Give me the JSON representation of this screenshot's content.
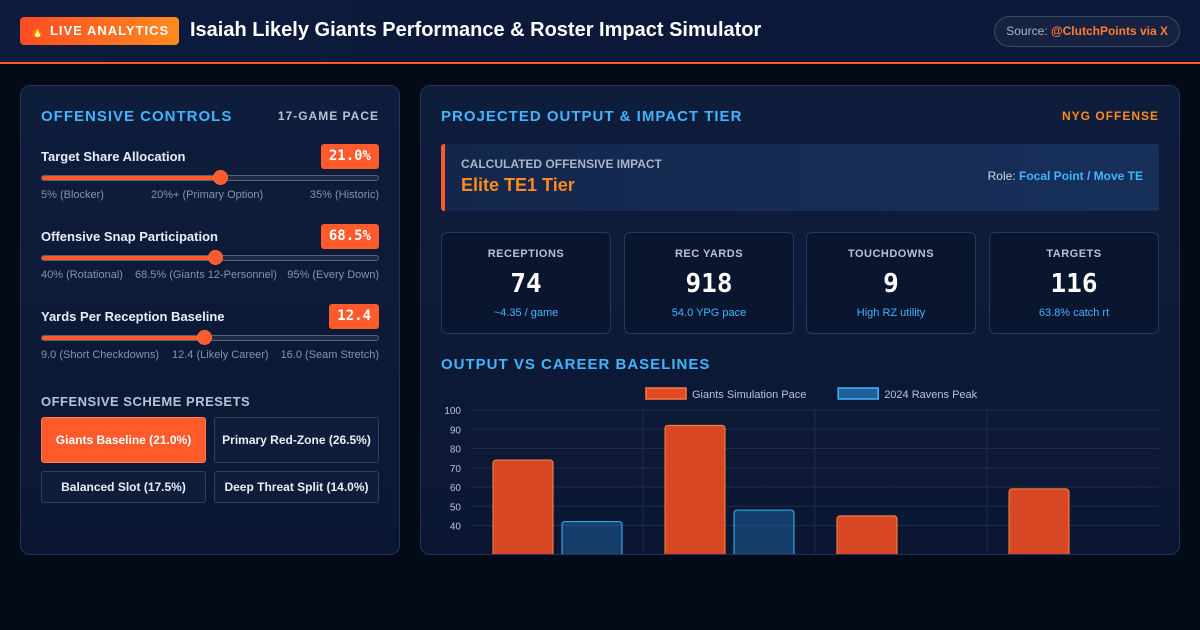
{
  "header": {
    "badge_icon": "fire-icon",
    "badge": "LIVE ANALYTICS",
    "title": "Isaiah Likely Giants Performance & Roster Impact Simulator",
    "source_prefix": "Source:",
    "source_handle": "@ClutchPoints via X"
  },
  "controls_panel": {
    "title": "OFFENSIVE CONTROLS",
    "tag": "17-GAME PACE",
    "sliders": [
      {
        "label": "Target Share Allocation",
        "value_text": "21.0%",
        "value": 21.0,
        "min": 5,
        "max": 35,
        "scale": [
          "5% (Blocker)",
          "20%+ (Primary Option)",
          "35% (Historic)"
        ]
      },
      {
        "label": "Offensive Snap Participation",
        "value_text": "68.5%",
        "value": 68.5,
        "min": 40,
        "max": 95,
        "scale": [
          "40% (Rotational)",
          "68.5% (Giants 12-Personnel)",
          "95% (Every Down)"
        ]
      },
      {
        "label": "Yards Per Reception Baseline",
        "value_text": "12.4",
        "value": 12.4,
        "min": 9.0,
        "max": 16.0,
        "scale": [
          "9.0 (Short Checkdowns)",
          "12.4 (Likely Career)",
          "16.0 (Seam Stretch)"
        ]
      }
    ],
    "presets_title": "OFFENSIVE SCHEME PRESETS",
    "presets": [
      {
        "label": "Giants Baseline (21.0%)",
        "active": true
      },
      {
        "label": "Primary Red-Zone (26.5%)",
        "active": false
      },
      {
        "label": "Balanced Slot (17.5%)",
        "active": false
      },
      {
        "label": "Deep Threat Split (14.0%)",
        "active": false
      }
    ]
  },
  "output_panel": {
    "title": "PROJECTED OUTPUT & IMPACT TIER",
    "tag": "NYG OFFENSE",
    "impact": {
      "label": "CALCULATED OFFENSIVE IMPACT",
      "tier": "Elite TE1 Tier",
      "role_prefix": "Role:",
      "role_value": "Focal Point / Move TE"
    },
    "stats": [
      {
        "label": "RECEPTIONS",
        "value": "74",
        "sub": "~4.35 / game"
      },
      {
        "label": "REC YARDS",
        "value": "918",
        "sub": "54.0 YPG pace"
      },
      {
        "label": "TOUCHDOWNS",
        "value": "9",
        "sub": "High RZ utility"
      },
      {
        "label": "TARGETS",
        "value": "116",
        "sub": "63.8% catch rt"
      }
    ],
    "chart_heading": "OUTPUT VS CAREER BASELINES"
  },
  "chart_data": {
    "type": "bar",
    "title": "",
    "xlabel": "",
    "ylabel": "",
    "ylim": [
      0,
      100
    ],
    "y_ticks": [
      40,
      50,
      60,
      70,
      80,
      90,
      100
    ],
    "legend_position": "top-center",
    "grid": true,
    "categories": [
      "",
      "",
      "",
      ""
    ],
    "series": [
      {
        "name": "Giants Simulation Pace",
        "color": "#e34a24",
        "values": [
          74,
          92,
          45,
          59
        ]
      },
      {
        "name": "2024 Ravens Peak",
        "color": "#1f5f9a",
        "values": [
          42,
          48,
          null,
          null
        ]
      }
    ]
  }
}
